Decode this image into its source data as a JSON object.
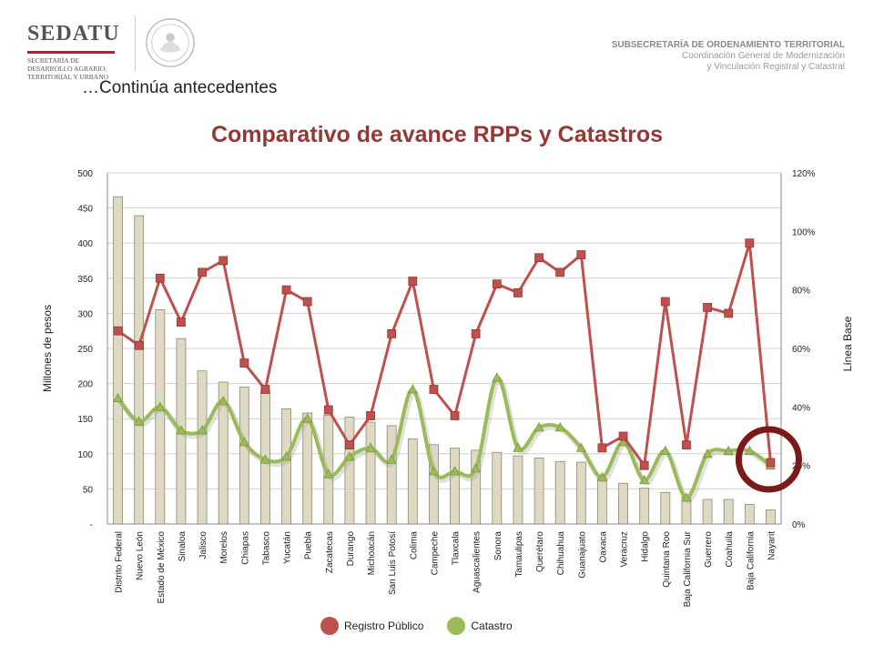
{
  "header": {
    "logo_text": "SEDATU",
    "logo_sub": [
      "SECRETARÍA DE",
      "DESARROLLO AGRARIO,",
      "TERRITORIAL Y URBANO"
    ],
    "right_title": "SUBSECRETARÍA DE ORDENAMIENTO TERRITORIAL",
    "right_line2": "Coordinación General de Modernización",
    "right_line3": "y Vinculación Registral y Catastral"
  },
  "subtitle": "…Continúa antecedentes",
  "colors": {
    "bar_fill": "#ddd9c3",
    "bar_stroke": "#8c8872",
    "registro": "#c0504d",
    "catastro": "#9bbb59",
    "title": "#953734",
    "highlight_ring": "#7b1a1a"
  },
  "chart_data": {
    "type": "bar",
    "title": "Comparativo de avance RPPs y Catastros",
    "ylabel": "Millones de pesos",
    "y2label": "Línea Base",
    "ylim": [
      0,
      500
    ],
    "y2lim": [
      0,
      120
    ],
    "y_ticks": [
      "-",
      "50",
      "100",
      "150",
      "200",
      "250",
      "300",
      "350",
      "400",
      "450",
      "500"
    ],
    "y2_ticks": [
      "0%",
      "20%",
      "40%",
      "60%",
      "80%",
      "100%",
      "120%"
    ],
    "grid": true,
    "legend_position": "bottom",
    "categories": [
      "Distrito Federal",
      "Nuevo León",
      "Estado de México",
      "Sinaloa",
      "Jalisco",
      "Morelos",
      "Chiapas",
      "Tabasco",
      "Yucatán",
      "Puebla",
      "Zacatecas",
      "Durango",
      "Michoacán",
      "San Luis Potosí",
      "Colima",
      "Campeche",
      "Tlaxcala",
      "Aguascalientes",
      "Sonora",
      "Tamaulipas",
      "Querétaro",
      "Chihuahua",
      "Guanajuato",
      "Oaxaca",
      "Veracruz",
      "Hidalgo",
      "Quintana Roo",
      "Baja California Sur",
      "Guerrero",
      "Coahuila",
      "Baja California",
      "Nayarit"
    ],
    "bars": [
      466,
      439,
      305,
      264,
      218,
      202,
      195,
      190,
      164,
      158,
      155,
      152,
      145,
      140,
      121,
      113,
      108,
      105,
      102,
      97,
      94,
      89,
      88,
      65,
      58,
      51,
      45,
      38,
      35,
      35,
      28,
      20
    ],
    "series": [
      {
        "name": "Registro Público",
        "axis": "right",
        "values": [
          66,
          61,
          84,
          69,
          86,
          90,
          55,
          46,
          80,
          76,
          39,
          27,
          37,
          65,
          83,
          46,
          37,
          65,
          82,
          79,
          91,
          86,
          92,
          26,
          30,
          20,
          76,
          27,
          74,
          72,
          96,
          21
        ]
      },
      {
        "name": "Catastro",
        "axis": "right",
        "values": [
          43,
          35,
          40,
          32,
          32,
          42,
          28,
          22,
          23,
          36,
          17,
          23,
          26,
          22,
          46,
          18,
          18,
          19,
          50,
          26,
          33,
          33,
          26,
          16,
          28,
          15,
          25,
          9,
          24,
          25,
          25,
          20
        ]
      }
    ]
  }
}
